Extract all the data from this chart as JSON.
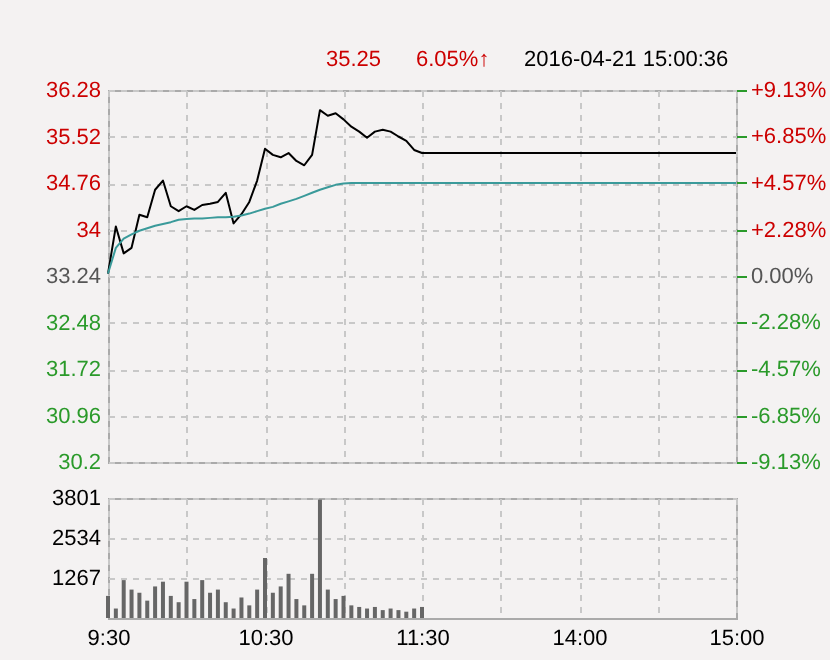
{
  "chart_data": [
    {
      "type": "line",
      "title": "2016-04-21 15:00:36",
      "annotations": [
        "35.25",
        "6.05%↑"
      ],
      "categories": [
        null,
        null,
        null,
        null,
        null,
        null,
        null,
        null,
        null,
        null,
        null,
        null,
        null,
        null,
        null,
        null,
        null,
        null,
        null,
        null,
        null,
        null,
        null,
        null,
        null,
        null,
        null,
        null,
        null,
        null,
        null,
        null,
        null,
        null,
        null,
        null,
        null,
        null,
        null,
        null,
        null,
        null,
        null,
        null,
        null,
        null,
        null,
        null,
        null,
        null,
        null,
        null,
        null,
        null,
        null,
        null,
        null,
        null,
        null,
        null,
        null,
        null,
        null,
        null,
        null,
        null,
        null,
        null,
        null,
        null,
        null,
        null,
        null,
        null,
        null,
        null,
        null,
        null,
        null,
        null,
        null
      ],
      "series": [
        {
          "color": "#000000",
          "values": [
            33.28,
            34.05,
            33.61,
            33.7,
            34.24,
            34.2,
            34.65,
            34.8,
            34.38,
            34.3,
            34.38,
            34.32,
            34.4,
            34.42,
            34.45,
            34.6,
            34.1,
            34.25,
            34.45,
            34.8,
            35.32,
            35.22,
            35.18,
            35.25,
            35.12,
            35.05,
            35.22,
            35.95,
            35.86,
            35.9,
            35.8,
            35.68,
            35.6,
            35.5,
            35.6,
            35.63,
            35.6,
            35.52,
            35.45,
            35.3,
            35.25,
            35.25,
            35.25,
            35.25,
            35.25,
            35.25,
            35.25,
            35.25,
            35.25,
            35.25,
            35.25,
            35.25,
            35.25,
            35.25,
            35.25,
            35.25,
            35.25,
            35.25,
            35.25,
            35.25,
            35.25,
            35.25,
            35.25,
            35.25,
            35.25,
            35.25,
            35.25,
            35.25,
            35.25,
            35.25,
            35.25,
            35.25,
            35.25,
            35.25,
            35.25,
            35.25,
            35.25,
            35.25,
            35.25,
            35.25,
            35.25
          ]
        },
        {
          "color": "#3a9a9a",
          "values": [
            33.28,
            33.7,
            33.85,
            33.92,
            33.98,
            34.02,
            34.06,
            34.09,
            34.12,
            34.16,
            34.17,
            34.18,
            34.18,
            34.19,
            34.2,
            34.2,
            34.21,
            34.23,
            34.26,
            34.3,
            34.34,
            34.37,
            34.42,
            34.46,
            34.5,
            34.55,
            34.6,
            34.65,
            34.69,
            34.73,
            34.75,
            34.76,
            34.76,
            34.76,
            34.76,
            34.76,
            34.76,
            34.76,
            34.76,
            34.76,
            34.76,
            34.76,
            34.76,
            34.76,
            34.76,
            34.76,
            34.76,
            34.76,
            34.76,
            34.76,
            34.76,
            34.76,
            34.76,
            34.76,
            34.76,
            34.76,
            34.76,
            34.76,
            34.76,
            34.76,
            34.76,
            34.76,
            34.76,
            34.76,
            34.76,
            34.76,
            34.76,
            34.76,
            34.76,
            34.76,
            34.76,
            34.76,
            34.76,
            34.76,
            34.76,
            34.76,
            34.76,
            34.76,
            34.76,
            34.76,
            34.76
          ]
        }
      ],
      "ylim": [
        30.2,
        36.28
      ],
      "yticks": [
        30.2,
        30.96,
        31.72,
        32.48,
        33.24,
        34,
        34.76,
        35.52,
        36.28
      ],
      "y2lim": [
        -9.13,
        9.13
      ],
      "y2ticks": [
        {
          "value": -9.13,
          "label": "-9.13%"
        },
        {
          "value": -6.85,
          "label": "-6.85%"
        },
        {
          "value": -4.57,
          "label": "-4.57%"
        },
        {
          "value": -2.28,
          "label": "-2.28%"
        },
        {
          "value": 0,
          "label": "0.00%"
        },
        {
          "value": 2.28,
          "label": "+2.28%"
        },
        {
          "value": 4.57,
          "label": "+4.57%"
        },
        {
          "value": 6.85,
          "label": "+6.85%"
        },
        {
          "value": 9.13,
          "label": "+9.13%"
        }
      ],
      "grid": true,
      "tick_labels": "y"
    },
    {
      "type": "bar",
      "color": "#666666",
      "categories": [
        "9:30",
        null,
        null,
        null,
        null,
        null,
        null,
        null,
        null,
        null,
        null,
        null,
        null,
        null,
        null,
        null,
        null,
        null,
        null,
        null,
        "10:30",
        null,
        null,
        null,
        null,
        null,
        null,
        null,
        null,
        null,
        null,
        null,
        null,
        null,
        null,
        null,
        null,
        null,
        null,
        null,
        "11:30",
        null,
        null,
        null,
        null,
        null,
        null,
        null,
        null,
        null,
        null,
        null,
        null,
        null,
        null,
        null,
        null,
        null,
        null,
        null,
        "14:00",
        null,
        null,
        null,
        null,
        null,
        null,
        null,
        null,
        null,
        null,
        null,
        null,
        null,
        null,
        null,
        null,
        null,
        null,
        null,
        "15:00"
      ],
      "values": [
        700,
        300,
        1200,
        900,
        800,
        550,
        1000,
        1150,
        700,
        500,
        1150,
        600,
        1200,
        800,
        900,
        500,
        300,
        650,
        400,
        900,
        1900,
        800,
        1000,
        1400,
        600,
        400,
        1400,
        3750,
        900,
        600,
        700,
        400,
        350,
        300,
        350,
        250,
        300,
        250,
        200,
        300,
        350,
        null,
        null,
        null,
        null,
        null,
        null,
        null,
        null,
        null,
        null,
        null,
        null,
        null,
        null,
        null,
        null,
        null,
        null,
        null,
        null,
        null,
        null,
        null,
        null,
        null,
        null,
        null,
        null,
        null,
        null,
        null,
        null,
        null,
        null,
        null,
        null,
        null,
        null,
        null,
        null
      ],
      "ylim": [
        0,
        3801
      ],
      "yticks": [
        1267,
        2534,
        3801
      ],
      "grid": true
    }
  ]
}
